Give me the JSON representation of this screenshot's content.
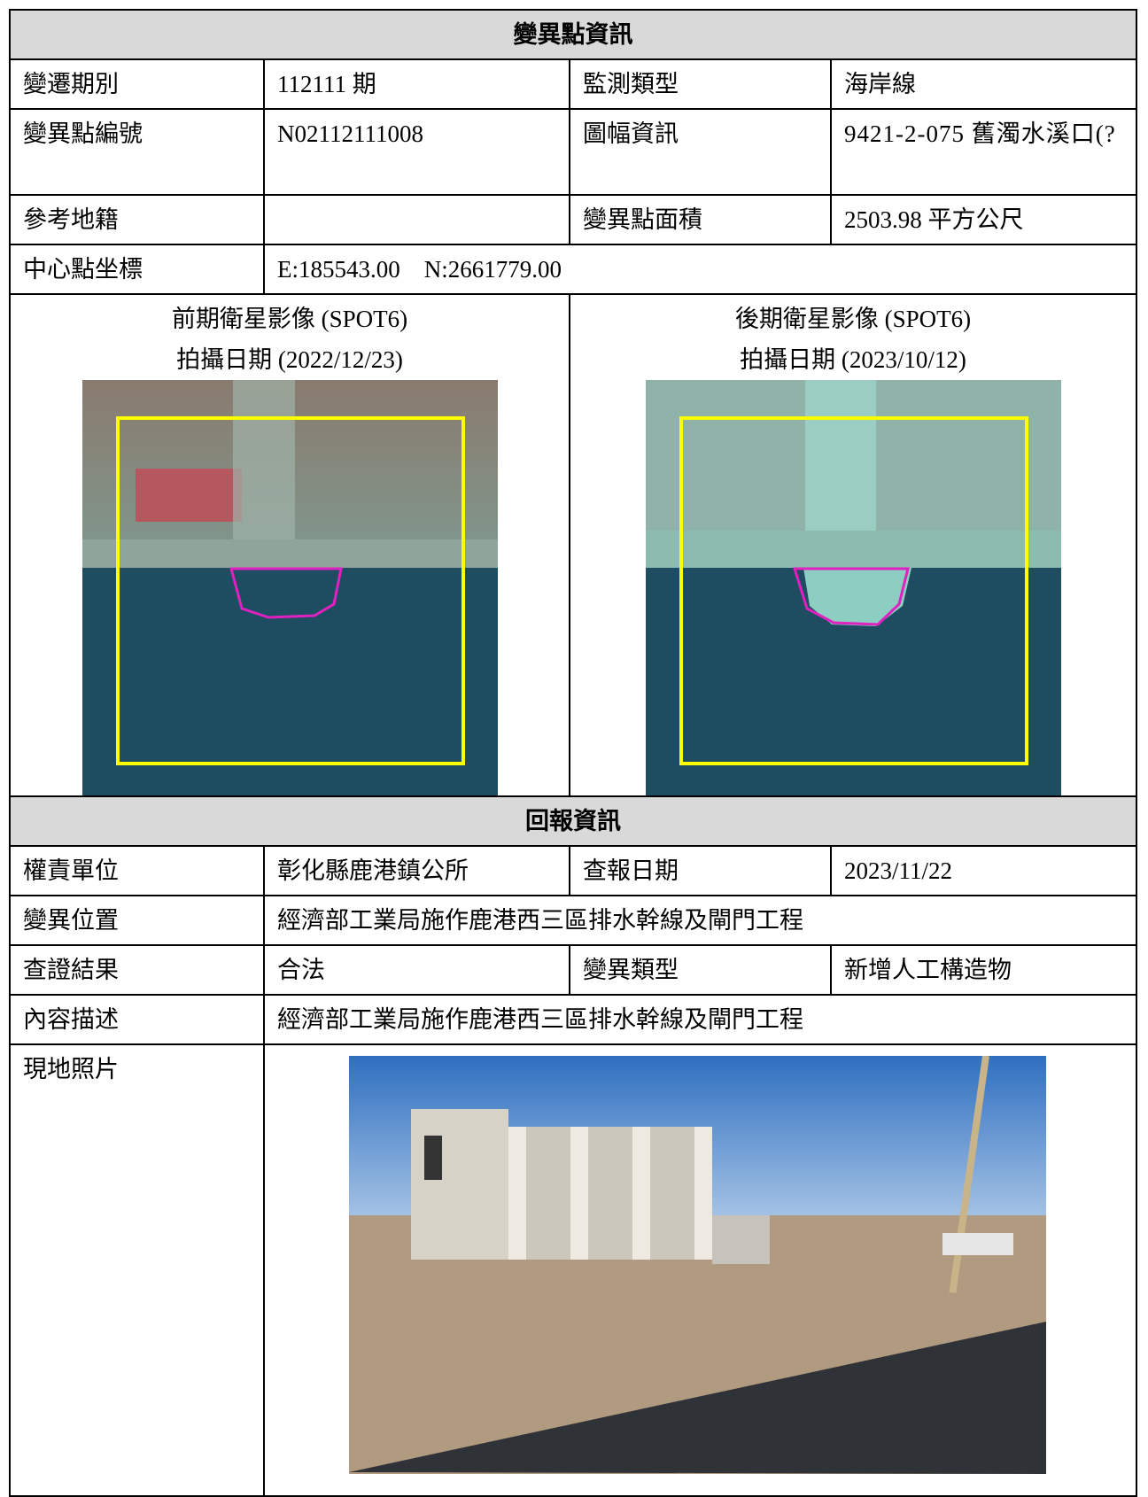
{
  "change_info": {
    "title": "變異點資訊",
    "period_label": "變遷期別",
    "period": "112111 期",
    "monitor_type_label": "監測類型",
    "monitor_type": "海岸線",
    "id_label": "變異點編號",
    "id": "N02112111008",
    "map_label": "圖幅資訊",
    "map": "9421-2-075 舊濁水溪口(?",
    "cadastre_label": "參考地籍",
    "area_label": "變異點面積",
    "area": "2503.98 平方公尺",
    "coord_label": "中心點坐標",
    "coord": "E:185543.00　N:2661779.00",
    "before_title": "前期衛星影像 (SPOT6)",
    "before_date": "拍攝日期 (2022/12/23)",
    "after_title": "後期衛星影像 (SPOT6)",
    "after_date": "拍攝日期 (2023/10/12)"
  },
  "report": {
    "title": "回報資訊",
    "unit_label": "權責單位",
    "unit": "彰化縣鹿港鎮公所",
    "date_label": "查報日期",
    "date": "2023/11/22",
    "location_label": "變異位置",
    "location": "經濟部工業局施作鹿港西三區排水幹線及閘門工程",
    "result_label": "查證結果",
    "result": "合法",
    "change_type_label": "變異類型",
    "change_type": "新增人工構造物",
    "desc_label": "內容描述",
    "desc": "經濟部工業局施作鹿港西三區排水幹線及閘門工程",
    "photo_label": "現地照片"
  }
}
